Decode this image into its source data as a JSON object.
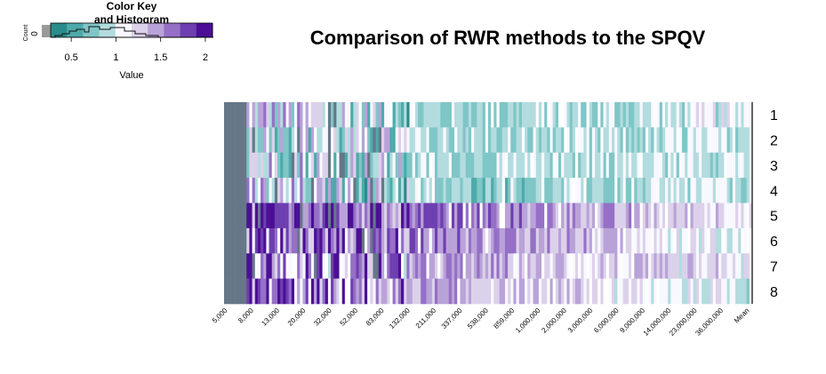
{
  "chart_data": {
    "type": "heatmap",
    "title": "Comparison of RWR methods to the SPQV",
    "color_key": {
      "title_line1": "Color Key",
      "title_line2": "and Histogram",
      "xlabel": "Value",
      "ylabel": "Count",
      "count_tick": "0",
      "ticks": [
        {
          "value": 0.5,
          "label": "0.5"
        },
        {
          "value": 1,
          "label": "1"
        },
        {
          "value": 1.5,
          "label": "1.5"
        },
        {
          "value": 2,
          "label": "2"
        }
      ],
      "range": [
        0.27,
        2.08
      ],
      "colors": [
        "#2b8c8c",
        "#4eaaaa",
        "#7fc6c6",
        "#b3dcdf",
        "#f8f8ff",
        "#dcd1ea",
        "#b9a2d8",
        "#9570c6",
        "#6e3fb0",
        "#4b0f96"
      ]
    },
    "special_colors": {
      "missing": "#667788",
      "blank": "#ffffff"
    },
    "rows": [
      "1",
      "2",
      "3",
      "4",
      "5",
      "6",
      "7",
      "8"
    ],
    "col_labels": [
      "5,000",
      "8,000",
      "13,000",
      "20,000",
      "32,000",
      "52,000",
      "83,000",
      "132,000",
      "211,000",
      "337,000",
      "538,000",
      "859,000",
      "1,000,000",
      "2,000,000",
      "3,000,000",
      "6,000,000",
      "9,000,000",
      "14,000,000",
      "23,000,000",
      "36,000,000",
      "Mean"
    ],
    "n_columns": 188,
    "row_profiles": [
      {
        "row": "1",
        "early": 1.3,
        "mid": 0.85,
        "late": 0.9,
        "tail": 1.05
      },
      {
        "row": "2",
        "early": 1.2,
        "mid": 0.85,
        "late": 0.85,
        "tail": 1.0
      },
      {
        "row": "3",
        "early": 1.25,
        "mid": 0.85,
        "late": 0.95,
        "tail": 1.05
      },
      {
        "row": "4",
        "early": 1.2,
        "mid": 0.8,
        "late": 0.85,
        "tail": 1.0
      },
      {
        "row": "5",
        "early": 1.75,
        "mid": 1.7,
        "late": 1.3,
        "tail": 1.25
      },
      {
        "row": "6",
        "early": 1.7,
        "mid": 1.6,
        "late": 1.25,
        "tail": 1.0
      },
      {
        "row": "7",
        "early": 1.6,
        "mid": 1.45,
        "late": 1.2,
        "tail": 1.15
      },
      {
        "row": "8",
        "early": 1.65,
        "mid": 1.4,
        "late": 1.1,
        "tail": 1.0
      }
    ]
  }
}
